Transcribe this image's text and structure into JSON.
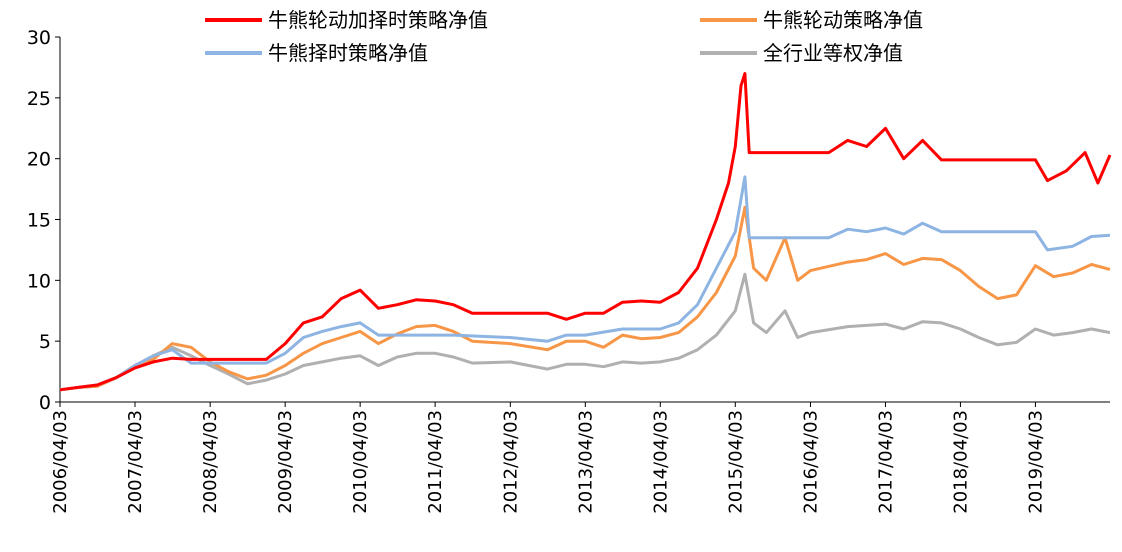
{
  "chart_data": {
    "type": "line",
    "title": "",
    "xlabel": "",
    "ylabel": "",
    "ylim": [
      0,
      30
    ],
    "yticks": [
      "0",
      "5",
      "10",
      "15",
      "20",
      "25",
      "30"
    ],
    "xticks": [
      "2006/04/03",
      "2007/04/03",
      "2008/04/03",
      "2009/04/03",
      "2010/04/03",
      "2011/04/03",
      "2012/04/03",
      "2013/04/03",
      "2014/04/03",
      "2015/04/03",
      "2016/04/03",
      "2017/04/03",
      "2018/04/03",
      "2019/04/03"
    ],
    "x_range": [
      "2006/04/03",
      "2020/03/31"
    ],
    "grid": false,
    "legend_position": "top",
    "series": [
      {
        "name": "牛熊轮动加择时策略净值",
        "color": "#ff0000",
        "points": [
          [
            "2006/04/03",
            1.0
          ],
          [
            "2006/07/01",
            1.2
          ],
          [
            "2006/10/01",
            1.4
          ],
          [
            "2007/01/01",
            2.0
          ],
          [
            "2007/04/03",
            2.8
          ],
          [
            "2007/07/01",
            3.3
          ],
          [
            "2007/10/01",
            3.6
          ],
          [
            "2008/01/01",
            3.5
          ],
          [
            "2008/04/03",
            3.5
          ],
          [
            "2008/10/01",
            3.5
          ],
          [
            "2009/01/01",
            3.5
          ],
          [
            "2009/04/03",
            4.8
          ],
          [
            "2009/07/01",
            6.5
          ],
          [
            "2009/10/01",
            7.0
          ],
          [
            "2010/01/01",
            8.5
          ],
          [
            "2010/04/03",
            9.2
          ],
          [
            "2010/07/01",
            7.7
          ],
          [
            "2010/10/01",
            8.0
          ],
          [
            "2011/01/01",
            8.4
          ],
          [
            "2011/04/03",
            8.3
          ],
          [
            "2011/07/01",
            8.0
          ],
          [
            "2011/10/01",
            7.3
          ],
          [
            "2012/04/03",
            7.3
          ],
          [
            "2012/10/01",
            7.3
          ],
          [
            "2013/01/01",
            6.8
          ],
          [
            "2013/04/03",
            7.3
          ],
          [
            "2013/07/01",
            7.3
          ],
          [
            "2013/10/01",
            8.2
          ],
          [
            "2014/01/01",
            8.3
          ],
          [
            "2014/04/03",
            8.2
          ],
          [
            "2014/07/01",
            9.0
          ],
          [
            "2014/10/01",
            11.0
          ],
          [
            "2015/01/01",
            15.0
          ],
          [
            "2015/03/01",
            18.0
          ],
          [
            "2015/04/03",
            21.0
          ],
          [
            "2015/05/01",
            26.0
          ],
          [
            "2015/05/20",
            27.0
          ],
          [
            "2015/06/10",
            20.5
          ],
          [
            "2015/10/01",
            20.5
          ],
          [
            "2016/04/03",
            20.5
          ],
          [
            "2016/07/01",
            20.5
          ],
          [
            "2016/10/01",
            21.5
          ],
          [
            "2017/01/01",
            21.0
          ],
          [
            "2017/04/03",
            22.5
          ],
          [
            "2017/07/01",
            20.0
          ],
          [
            "2017/10/01",
            21.5
          ],
          [
            "2018/01/01",
            19.9
          ],
          [
            "2018/04/03",
            19.9
          ],
          [
            "2018/10/01",
            19.9
          ],
          [
            "2019/04/03",
            19.9
          ],
          [
            "2019/06/01",
            18.2
          ],
          [
            "2019/09/01",
            19.0
          ],
          [
            "2019/12/01",
            20.5
          ],
          [
            "2020/02/01",
            18.0
          ],
          [
            "2020/03/31",
            20.3
          ]
        ]
      },
      {
        "name": "牛熊轮动策略净值",
        "color": "#f79646",
        "points": [
          [
            "2006/04/03",
            1.0
          ],
          [
            "2006/07/01",
            1.2
          ],
          [
            "2006/10/01",
            1.3
          ],
          [
            "2007/01/01",
            2.0
          ],
          [
            "2007/04/03",
            3.0
          ],
          [
            "2007/07/01",
            3.5
          ],
          [
            "2007/10/01",
            4.8
          ],
          [
            "2008/01/01",
            4.5
          ],
          [
            "2008/04/03",
            3.3
          ],
          [
            "2008/07/01",
            2.5
          ],
          [
            "2008/10/01",
            1.9
          ],
          [
            "2009/01/01",
            2.2
          ],
          [
            "2009/04/03",
            3.0
          ],
          [
            "2009/07/01",
            4.0
          ],
          [
            "2009/10/01",
            4.8
          ],
          [
            "2010/01/01",
            5.3
          ],
          [
            "2010/04/03",
            5.8
          ],
          [
            "2010/07/01",
            4.8
          ],
          [
            "2010/10/01",
            5.6
          ],
          [
            "2011/01/01",
            6.2
          ],
          [
            "2011/04/03",
            6.3
          ],
          [
            "2011/07/01",
            5.8
          ],
          [
            "2011/10/01",
            5.0
          ],
          [
            "2012/04/03",
            4.8
          ],
          [
            "2012/10/01",
            4.3
          ],
          [
            "2013/01/01",
            5.0
          ],
          [
            "2013/04/03",
            5.0
          ],
          [
            "2013/07/01",
            4.5
          ],
          [
            "2013/10/01",
            5.5
          ],
          [
            "2014/01/01",
            5.2
          ],
          [
            "2014/04/03",
            5.3
          ],
          [
            "2014/07/01",
            5.7
          ],
          [
            "2014/10/01",
            7.0
          ],
          [
            "2015/01/01",
            9.0
          ],
          [
            "2015/04/03",
            12.0
          ],
          [
            "2015/05/20",
            16.0
          ],
          [
            "2015/07/01",
            11.0
          ],
          [
            "2015/09/01",
            10.0
          ],
          [
            "2015/12/01",
            13.5
          ],
          [
            "2016/02/01",
            10.0
          ],
          [
            "2016/04/03",
            10.8
          ],
          [
            "2016/10/01",
            11.5
          ],
          [
            "2017/01/01",
            11.7
          ],
          [
            "2017/04/03",
            12.2
          ],
          [
            "2017/07/01",
            11.3
          ],
          [
            "2017/10/01",
            11.8
          ],
          [
            "2018/01/01",
            11.7
          ],
          [
            "2018/04/03",
            10.8
          ],
          [
            "2018/07/01",
            9.5
          ],
          [
            "2018/10/01",
            8.5
          ],
          [
            "2019/01/01",
            8.8
          ],
          [
            "2019/04/03",
            11.2
          ],
          [
            "2019/07/01",
            10.3
          ],
          [
            "2019/10/01",
            10.6
          ],
          [
            "2020/01/01",
            11.3
          ],
          [
            "2020/03/31",
            10.9
          ]
        ]
      },
      {
        "name": "牛熊择时策略净值",
        "color": "#8db4e2",
        "points": [
          [
            "2006/04/03",
            1.0
          ],
          [
            "2006/07/01",
            1.2
          ],
          [
            "2006/10/01",
            1.4
          ],
          [
            "2007/01/01",
            2.0
          ],
          [
            "2007/04/03",
            3.0
          ],
          [
            "2007/07/01",
            3.8
          ],
          [
            "2007/10/01",
            4.3
          ],
          [
            "2008/01/01",
            3.2
          ],
          [
            "2008/04/03",
            3.2
          ],
          [
            "2008/10/01",
            3.2
          ],
          [
            "2009/01/01",
            3.2
          ],
          [
            "2009/04/03",
            4.0
          ],
          [
            "2009/07/01",
            5.3
          ],
          [
            "2009/10/01",
            5.8
          ],
          [
            "2010/01/01",
            6.2
          ],
          [
            "2010/04/03",
            6.5
          ],
          [
            "2010/07/01",
            5.5
          ],
          [
            "2011/01/01",
            5.5
          ],
          [
            "2011/07/01",
            5.5
          ],
          [
            "2012/04/03",
            5.3
          ],
          [
            "2012/10/01",
            5.0
          ],
          [
            "2013/01/01",
            5.5
          ],
          [
            "2013/04/03",
            5.5
          ],
          [
            "2013/10/01",
            6.0
          ],
          [
            "2014/04/03",
            6.0
          ],
          [
            "2014/07/01",
            6.5
          ],
          [
            "2014/10/01",
            8.0
          ],
          [
            "2015/01/01",
            11.0
          ],
          [
            "2015/04/03",
            14.0
          ],
          [
            "2015/05/20",
            18.5
          ],
          [
            "2015/06/10",
            13.5
          ],
          [
            "2015/10/01",
            13.5
          ],
          [
            "2016/04/03",
            13.5
          ],
          [
            "2016/07/01",
            13.5
          ],
          [
            "2016/10/01",
            14.2
          ],
          [
            "2017/01/01",
            14.0
          ],
          [
            "2017/04/03",
            14.3
          ],
          [
            "2017/07/01",
            13.8
          ],
          [
            "2017/10/01",
            14.7
          ],
          [
            "2018/01/01",
            14.0
          ],
          [
            "2018/04/03",
            14.0
          ],
          [
            "2018/10/01",
            14.0
          ],
          [
            "2019/04/03",
            14.0
          ],
          [
            "2019/06/01",
            12.5
          ],
          [
            "2019/10/01",
            12.8
          ],
          [
            "2020/01/01",
            13.6
          ],
          [
            "2020/03/31",
            13.7
          ]
        ]
      },
      {
        "name": "全行业等权净值",
        "color": "#b0b0b0",
        "points": [
          [
            "2006/04/03",
            1.0
          ],
          [
            "2006/07/01",
            1.2
          ],
          [
            "2006/10/01",
            1.3
          ],
          [
            "2007/01/01",
            2.0
          ],
          [
            "2007/04/03",
            3.0
          ],
          [
            "2007/07/01",
            3.8
          ],
          [
            "2007/10/01",
            4.5
          ],
          [
            "2008/01/01",
            3.8
          ],
          [
            "2008/04/03",
            3.0
          ],
          [
            "2008/07/01",
            2.3
          ],
          [
            "2008/10/01",
            1.5
          ],
          [
            "2009/01/01",
            1.8
          ],
          [
            "2009/04/03",
            2.3
          ],
          [
            "2009/07/01",
            3.0
          ],
          [
            "2009/10/01",
            3.3
          ],
          [
            "2010/01/01",
            3.6
          ],
          [
            "2010/04/03",
            3.8
          ],
          [
            "2010/07/01",
            3.0
          ],
          [
            "2010/10/01",
            3.7
          ],
          [
            "2011/01/01",
            4.0
          ],
          [
            "2011/04/03",
            4.0
          ],
          [
            "2011/07/01",
            3.7
          ],
          [
            "2011/10/01",
            3.2
          ],
          [
            "2012/04/03",
            3.3
          ],
          [
            "2012/10/01",
            2.7
          ],
          [
            "2013/01/01",
            3.1
          ],
          [
            "2013/04/03",
            3.1
          ],
          [
            "2013/07/01",
            2.9
          ],
          [
            "2013/10/01",
            3.3
          ],
          [
            "2014/01/01",
            3.2
          ],
          [
            "2014/04/03",
            3.3
          ],
          [
            "2014/07/01",
            3.6
          ],
          [
            "2014/10/01",
            4.3
          ],
          [
            "2015/01/01",
            5.5
          ],
          [
            "2015/04/03",
            7.5
          ],
          [
            "2015/05/20",
            10.5
          ],
          [
            "2015/07/01",
            6.5
          ],
          [
            "2015/09/01",
            5.7
          ],
          [
            "2015/12/01",
            7.5
          ],
          [
            "2016/02/01",
            5.3
          ],
          [
            "2016/04/03",
            5.7
          ],
          [
            "2016/10/01",
            6.2
          ],
          [
            "2017/01/01",
            6.3
          ],
          [
            "2017/04/03",
            6.4
          ],
          [
            "2017/07/01",
            6.0
          ],
          [
            "2017/10/01",
            6.6
          ],
          [
            "2018/01/01",
            6.5
          ],
          [
            "2018/04/03",
            6.0
          ],
          [
            "2018/07/01",
            5.3
          ],
          [
            "2018/10/01",
            4.7
          ],
          [
            "2019/01/01",
            4.9
          ],
          [
            "2019/04/03",
            6.0
          ],
          [
            "2019/07/01",
            5.5
          ],
          [
            "2019/10/01",
            5.7
          ],
          [
            "2020/01/01",
            6.0
          ],
          [
            "2020/03/31",
            5.7
          ]
        ]
      }
    ]
  }
}
